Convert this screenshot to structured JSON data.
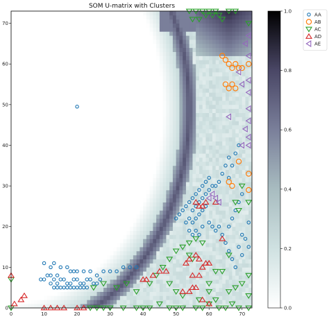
{
  "chart_data": {
    "type": "heatmap",
    "title": "SOM U-matrix with Clusters",
    "xlabel": "",
    "ylabel": "",
    "xlim": [
      0,
      73
    ],
    "ylim": [
      0,
      73
    ],
    "x_ticks": [
      0,
      10,
      20,
      30,
      40,
      50,
      60,
      70
    ],
    "y_ticks": [
      0,
      10,
      20,
      30,
      40,
      50,
      60,
      70
    ],
    "colorbar": {
      "range": [
        0,
        1
      ],
      "ticks": [
        0.0,
        0.2,
        0.4,
        0.6,
        0.8,
        1.0
      ],
      "colormap": "bone_r"
    },
    "legend_position": "top-right",
    "colors": {
      "AA": "#1f77b4",
      "AB": "#ff7f0e",
      "AC": "#2ca02c",
      "AD": "#d62728",
      "AE": "#9467bd"
    },
    "heatmap_model": {
      "description": "dark ridge along a circular arc separating a white low-distance interior from a light textured exterior",
      "arc_center": [
        -2,
        49
      ],
      "arc_radius": 56,
      "ridge_value": 0.75,
      "interior_value": 0.0,
      "exterior_value": 0.18
    },
    "series": [
      {
        "name": "AA",
        "marker": "circle",
        "points": [
          [
            20,
            49.5
          ],
          [
            10,
            11
          ],
          [
            12,
            10
          ],
          [
            13,
            11
          ],
          [
            15,
            10
          ],
          [
            17,
            10
          ],
          [
            18,
            9
          ],
          [
            19,
            9
          ],
          [
            20,
            9
          ],
          [
            22,
            9
          ],
          [
            24,
            9
          ],
          [
            26,
            8
          ],
          [
            28,
            9
          ],
          [
            30,
            9
          ],
          [
            32,
            9
          ],
          [
            34,
            10
          ],
          [
            36,
            10
          ],
          [
            38,
            10
          ],
          [
            14,
            8
          ],
          [
            15,
            7
          ],
          [
            16,
            7
          ],
          [
            17,
            6
          ],
          [
            18,
            6
          ],
          [
            19,
            7
          ],
          [
            20,
            7
          ],
          [
            21,
            6
          ],
          [
            22,
            6
          ],
          [
            23,
            7
          ],
          [
            24,
            7
          ],
          [
            25,
            6
          ],
          [
            26,
            6
          ],
          [
            27,
            7
          ],
          [
            12,
            6
          ],
          [
            13,
            5
          ],
          [
            14,
            5
          ],
          [
            15,
            5
          ],
          [
            16,
            5
          ],
          [
            17,
            5
          ],
          [
            18,
            5
          ],
          [
            19,
            5
          ],
          [
            20,
            5
          ],
          [
            21,
            5
          ],
          [
            22,
            5
          ],
          [
            23,
            5
          ],
          [
            9,
            7
          ],
          [
            10,
            7
          ],
          [
            11,
            8
          ],
          [
            12,
            8
          ],
          [
            13,
            7
          ],
          [
            14,
            6
          ],
          [
            50,
            22
          ],
          [
            51,
            23
          ],
          [
            52,
            24
          ],
          [
            53,
            25
          ],
          [
            54,
            26
          ],
          [
            55,
            27
          ],
          [
            56,
            28
          ],
          [
            57,
            29
          ],
          [
            58,
            30
          ],
          [
            59,
            31
          ],
          [
            60,
            32
          ],
          [
            55,
            24
          ],
          [
            56,
            25
          ],
          [
            57,
            26
          ],
          [
            58,
            27
          ],
          [
            59,
            28
          ],
          [
            60,
            29
          ],
          [
            61,
            30
          ],
          [
            62,
            30
          ],
          [
            63,
            31
          ],
          [
            64,
            33
          ],
          [
            65,
            35
          ],
          [
            66,
            37
          ],
          [
            53,
            21
          ],
          [
            54,
            22
          ],
          [
            55,
            21
          ],
          [
            56,
            22
          ],
          [
            57,
            23
          ],
          [
            58,
            24
          ],
          [
            59,
            25
          ],
          [
            54,
            19
          ],
          [
            55,
            18
          ],
          [
            56,
            19
          ],
          [
            57,
            18
          ],
          [
            58,
            20
          ],
          [
            60,
            21
          ],
          [
            61,
            20
          ],
          [
            62,
            19
          ],
          [
            63,
            20
          ],
          [
            64,
            18
          ],
          [
            65,
            16
          ],
          [
            66,
            14
          ],
          [
            67,
            12
          ],
          [
            68,
            10
          ],
          [
            69,
            15
          ],
          [
            70,
            13
          ],
          [
            70,
            18
          ],
          [
            71,
            17
          ],
          [
            72,
            21
          ],
          [
            72,
            15
          ],
          [
            66,
            20
          ],
          [
            67,
            22
          ],
          [
            68,
            24
          ],
          [
            69,
            26
          ],
          [
            70,
            28
          ],
          [
            66,
            32
          ],
          [
            67,
            35
          ],
          [
            68,
            38
          ],
          [
            69,
            40
          ]
        ]
      },
      {
        "name": "AB",
        "marker": "circle-large",
        "points": [
          [
            64,
            62
          ],
          [
            65,
            61
          ],
          [
            66,
            60
          ],
          [
            67,
            59
          ],
          [
            68,
            60
          ],
          [
            69,
            59
          ],
          [
            70,
            59
          ],
          [
            72,
            60
          ],
          [
            65,
            55
          ],
          [
            66,
            54
          ],
          [
            67,
            55
          ],
          [
            68,
            54
          ],
          [
            66,
            31
          ],
          [
            67,
            30
          ],
          [
            69,
            36
          ],
          [
            72,
            33
          ],
          [
            72,
            29
          ]
        ]
      },
      {
        "name": "AC",
        "marker": "triangle-down",
        "points": [
          [
            54,
            73
          ],
          [
            56,
            73
          ],
          [
            58,
            73
          ],
          [
            60,
            73
          ],
          [
            62,
            73
          ],
          [
            66,
            73
          ],
          [
            68,
            73
          ],
          [
            55,
            71
          ],
          [
            57,
            71
          ],
          [
            59,
            72
          ],
          [
            61,
            72
          ],
          [
            63,
            72
          ],
          [
            64,
            71
          ],
          [
            72,
            70
          ],
          [
            0,
            7
          ],
          [
            0,
            0
          ],
          [
            24,
            0
          ],
          [
            26,
            0
          ],
          [
            28,
            0
          ],
          [
            30,
            0
          ],
          [
            34,
            0
          ],
          [
            38,
            0
          ],
          [
            40,
            0
          ],
          [
            42,
            0
          ],
          [
            45,
            1
          ],
          [
            48,
            0
          ],
          [
            50,
            0
          ],
          [
            52,
            0
          ],
          [
            56,
            0
          ],
          [
            58,
            0
          ],
          [
            60,
            1
          ],
          [
            63,
            0
          ],
          [
            65,
            0
          ],
          [
            67,
            1
          ],
          [
            69,
            0
          ],
          [
            72,
            0
          ],
          [
            25,
            5
          ],
          [
            28,
            6
          ],
          [
            32,
            5
          ],
          [
            35,
            6
          ],
          [
            38,
            4
          ],
          [
            42,
            6
          ],
          [
            44,
            8
          ],
          [
            46,
            10
          ],
          [
            48,
            12
          ],
          [
            50,
            14
          ],
          [
            52,
            15
          ],
          [
            54,
            16
          ],
          [
            56,
            17
          ],
          [
            58,
            16
          ],
          [
            62,
            9
          ],
          [
            64,
            9
          ],
          [
            66,
            4
          ],
          [
            68,
            5
          ],
          [
            70,
            6
          ],
          [
            72,
            3
          ],
          [
            72,
            8
          ],
          [
            54,
            13
          ],
          [
            55,
            12
          ],
          [
            48,
            6
          ],
          [
            50,
            4
          ],
          [
            52,
            3
          ],
          [
            57,
            2
          ],
          [
            60,
            4
          ],
          [
            62,
            2
          ],
          [
            66,
            13
          ],
          [
            68,
            26
          ],
          [
            70,
            30
          ],
          [
            72,
            26
          ],
          [
            69,
            24
          ],
          [
            60,
            6
          ]
        ]
      },
      {
        "name": "AD",
        "marker": "triangle-up",
        "points": [
          [
            0,
            8
          ],
          [
            1,
            1
          ],
          [
            3,
            2
          ],
          [
            4,
            3
          ],
          [
            10,
            0
          ],
          [
            12,
            0
          ],
          [
            14,
            0
          ],
          [
            16,
            0
          ],
          [
            20,
            0
          ],
          [
            22,
            0
          ],
          [
            40,
            7
          ],
          [
            41,
            7
          ],
          [
            43,
            8
          ],
          [
            45,
            9
          ],
          [
            47,
            9
          ],
          [
            55,
            8
          ],
          [
            57,
            8
          ],
          [
            53,
            11
          ],
          [
            54,
            12
          ],
          [
            56,
            13
          ],
          [
            57,
            12
          ],
          [
            58,
            10
          ],
          [
            59,
            11
          ],
          [
            60,
            11
          ],
          [
            64,
            17
          ],
          [
            52,
            4
          ],
          [
            54,
            4
          ],
          [
            55,
            5
          ],
          [
            56,
            5
          ],
          [
            58,
            2
          ],
          [
            60,
            1
          ],
          [
            56,
            26
          ],
          [
            57,
            25
          ],
          [
            58,
            25
          ],
          [
            59,
            26
          ],
          [
            62,
            26
          ]
        ]
      },
      {
        "name": "AE",
        "marker": "triangle-left",
        "points": [
          [
            72,
            67
          ],
          [
            71,
            65
          ],
          [
            72,
            62
          ],
          [
            69,
            58
          ],
          [
            72,
            56
          ],
          [
            70,
            55
          ],
          [
            72,
            53
          ],
          [
            72,
            49
          ],
          [
            66,
            47
          ],
          [
            72,
            46
          ],
          [
            71,
            44
          ],
          [
            72,
            42
          ],
          [
            70,
            40
          ],
          [
            72,
            40
          ],
          [
            60,
            27
          ],
          [
            61,
            28
          ],
          [
            62,
            27
          ],
          [
            63,
            26
          ]
        ]
      }
    ]
  }
}
